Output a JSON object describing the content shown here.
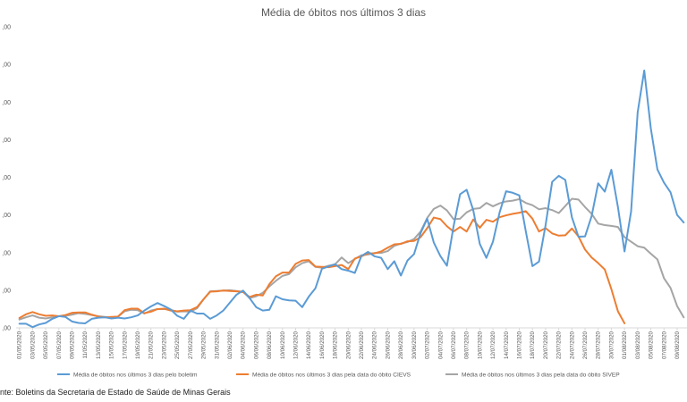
{
  "chart_data": {
    "type": "line",
    "title": "Média de óbitos nos últimos 3 dias",
    "xlabel": "",
    "ylabel": "",
    "y_tick_labels": [
      ",00",
      ",00",
      ",00",
      ",00",
      ",00",
      ",00",
      ",00",
      ",00",
      ",00"
    ],
    "ylim": [
      0,
      80
    ],
    "x": [
      "01/05/2020",
      "02/05/2020",
      "03/05/2020",
      "04/05/2020",
      "05/05/2020",
      "06/05/2020",
      "07/05/2020",
      "08/05/2020",
      "09/05/2020",
      "10/05/2020",
      "11/05/2020",
      "12/05/2020",
      "13/05/2020",
      "14/05/2020",
      "15/05/2020",
      "16/05/2020",
      "17/05/2020",
      "18/05/2020",
      "19/05/2020",
      "20/05/2020",
      "21/05/2020",
      "22/05/2020",
      "23/05/2020",
      "24/05/2020",
      "25/05/2020",
      "26/05/2020",
      "27/05/2020",
      "28/05/2020",
      "29/05/2020",
      "30/05/2020",
      "31/05/2020",
      "01/06/2020",
      "02/06/2020",
      "03/06/2020",
      "04/06/2020",
      "05/06/2020",
      "06/06/2020",
      "07/06/2020",
      "08/06/2020",
      "09/06/2020",
      "10/06/2020",
      "11/06/2020",
      "12/06/2020",
      "13/06/2020",
      "14/06/2020",
      "15/06/2020",
      "16/06/2020",
      "17/06/2020",
      "18/06/2020",
      "19/06/2020",
      "20/06/2020",
      "21/06/2020",
      "22/06/2020",
      "23/06/2020",
      "24/06/2020",
      "25/06/2020",
      "26/06/2020",
      "27/06/2020",
      "28/06/2020",
      "29/06/2020",
      "30/06/2020",
      "01/07/2020",
      "02/07/2020",
      "03/07/2020",
      "04/07/2020",
      "05/07/2020",
      "06/07/2020",
      "07/07/2020",
      "08/07/2020",
      "09/07/2020",
      "10/07/2020",
      "11/07/2020",
      "12/07/2020",
      "13/07/2020",
      "14/07/2020",
      "15/07/2020",
      "16/07/2020",
      "17/07/2020",
      "18/07/2020",
      "19/07/2020",
      "20/07/2020",
      "21/07/2020",
      "22/07/2020",
      "23/07/2020",
      "24/07/2020",
      "25/07/2020",
      "26/07/2020",
      "27/07/2020",
      "28/07/2020",
      "29/07/2020",
      "30/07/2020",
      "31/07/2020",
      "01/08/2020",
      "02/08/2020",
      "03/08/2020",
      "04/08/2020",
      "05/08/2020",
      "06/08/2020",
      "07/08/2020",
      "08/08/2020",
      "09/08/2020",
      "10/08/2020"
    ],
    "x_tick_labels": [
      "01/05/2020",
      "03/05/2020",
      "05/05/2020",
      "07/05/2020",
      "09/05/2020",
      "11/05/2020",
      "13/05/2020",
      "15/05/2020",
      "17/05/2020",
      "19/05/2020",
      "21/05/2020",
      "23/05/2020",
      "25/05/2020",
      "27/05/2020",
      "29/05/2020",
      "31/05/2020",
      "02/06/2020",
      "04/06/2020",
      "06/06/2020",
      "08/06/2020",
      "10/06/2020",
      "12/06/2020",
      "14/06/2020",
      "16/06/2020",
      "18/06/2020",
      "20/06/2020",
      "22/06/2020",
      "24/06/2020",
      "26/06/2020",
      "28/06/2020",
      "30/06/2020",
      "02/07/2020",
      "04/07/2020",
      "06/07/2020",
      "08/07/2020",
      "10/07/2020",
      "12/07/2020",
      "14/07/2020",
      "16/07/2020",
      "18/07/2020",
      "20/07/2020",
      "22/07/2020",
      "24/07/2020",
      "26/07/2020",
      "28/07/2020",
      "30/07/2020",
      "01/08/2020",
      "03/08/2020",
      "05/08/2020",
      "07/08/2020",
      "09/08/2020"
    ],
    "grid": false,
    "legend_position": "bottom",
    "series": [
      {
        "name": "Média de óbitos nos últimos 3 dias pelo boletim",
        "color": "#5b9bd5",
        "values": [
          1.1,
          1.1,
          0.2,
          0.9,
          1.3,
          2.4,
          3.1,
          2.9,
          1.7,
          1.3,
          1.2,
          2.4,
          2.7,
          2.8,
          2.5,
          2.7,
          2.5,
          2.8,
          3.3,
          4.6,
          5.7,
          6.6,
          5.8,
          4.9,
          3.2,
          2.4,
          4.6,
          3.8,
          3.8,
          2.4,
          3.3,
          4.6,
          6.7,
          8.8,
          9.9,
          7.9,
          5.5,
          4.6,
          4.8,
          8.4,
          7.6,
          7.3,
          7.2,
          5.5,
          8.3,
          10.5,
          15.7,
          16.3,
          16.9,
          15.6,
          15.2,
          14.6,
          19.1,
          20.2,
          19.0,
          18.6,
          15.6,
          17.7,
          13.9,
          17.9,
          19.6,
          25.2,
          29.0,
          22.7,
          19.1,
          16.5,
          26.9,
          35.5,
          36.7,
          31.3,
          22.3,
          18.6,
          22.9,
          30.6,
          36.3,
          35.9,
          35.2,
          25.6,
          16.4,
          17.6,
          27.3,
          38.8,
          40.4,
          39.3,
          29.4,
          24.2,
          24.3,
          29.7,
          38.4,
          36.2,
          42.0,
          32.1,
          20.3,
          30.9,
          57.3,
          68.4,
          53.0,
          42.1,
          38.6,
          36.0,
          30.0,
          28.0
        ]
      },
      {
        "name": "Média de óbitos nos últimos 3 dias pela data do óbito CIEVS",
        "color": "#ed7d31",
        "values": [
          2.6,
          3.6,
          4.2,
          3.6,
          3.2,
          3.3,
          3.1,
          3.4,
          4.0,
          4.1,
          4.1,
          3.5,
          3.0,
          2.8,
          2.9,
          3.0,
          4.7,
          5.1,
          5.1,
          3.9,
          4.3,
          5.0,
          5.1,
          4.6,
          4.4,
          4.6,
          4.7,
          5.5,
          7.6,
          9.6,
          9.7,
          9.9,
          9.8,
          9.7,
          9.5,
          8.2,
          8.8,
          8.6,
          11.6,
          13.7,
          14.7,
          14.7,
          17.0,
          17.9,
          18.0,
          16.3,
          16.2,
          16.1,
          16.4,
          16.7,
          15.6,
          18.4,
          19.0,
          19.8,
          19.8,
          20.3,
          21.3,
          22.2,
          22.3,
          23.0,
          23.1,
          24.1,
          26.5,
          29.3,
          28.9,
          27.0,
          25.6,
          26.8,
          25.6,
          28.8,
          26.6,
          28.7,
          28.2,
          29.4,
          29.9,
          30.3,
          30.6,
          31.0,
          29.0,
          25.6,
          26.5,
          25.1,
          24.5,
          24.6,
          26.4,
          24.3,
          20.8,
          18.7,
          17.2,
          15.5,
          10.3,
          4.4,
          1.2,
          null,
          null,
          null,
          null,
          null,
          null,
          null,
          null,
          null
        ]
      },
      {
        "name": "Média de óbitos nos últimos 3 dias pela data do óbito SIVEP",
        "color": "#a5a5a5",
        "values": [
          2.2,
          2.8,
          3.3,
          2.7,
          2.5,
          2.8,
          3.1,
          3.2,
          3.5,
          3.9,
          3.7,
          3.4,
          3.1,
          2.9,
          2.7,
          3.0,
          4.4,
          4.8,
          4.7,
          3.8,
          4.6,
          5.0,
          5.0,
          4.8,
          4.3,
          4.4,
          4.3,
          5.2,
          7.6,
          9.7,
          9.8,
          9.9,
          10.0,
          9.8,
          9.6,
          7.9,
          8.4,
          9.3,
          11.0,
          12.5,
          13.8,
          14.3,
          16.1,
          17.2,
          17.7,
          16.2,
          16.0,
          16.5,
          16.9,
          18.7,
          17.2,
          18.3,
          19.3,
          19.5,
          19.9,
          19.9,
          20.4,
          21.8,
          22.4,
          22.8,
          23.6,
          25.6,
          29.2,
          31.6,
          32.5,
          31.2,
          28.9,
          29.0,
          30.7,
          31.6,
          31.8,
          33.2,
          32.3,
          33.1,
          33.6,
          33.8,
          34.2,
          33.2,
          32.6,
          31.5,
          31.8,
          31.3,
          30.5,
          32.4,
          34.3,
          34.1,
          32.1,
          30.3,
          27.7,
          27.3,
          27.1,
          26.8,
          24.1,
          22.9,
          21.7,
          21.3,
          19.7,
          18.2,
          13.2,
          10.6,
          5.8,
          2.8
        ]
      }
    ]
  },
  "source_text": "nte: Boletins da Secretaria de Estado de Saúde de Minas Gerais"
}
